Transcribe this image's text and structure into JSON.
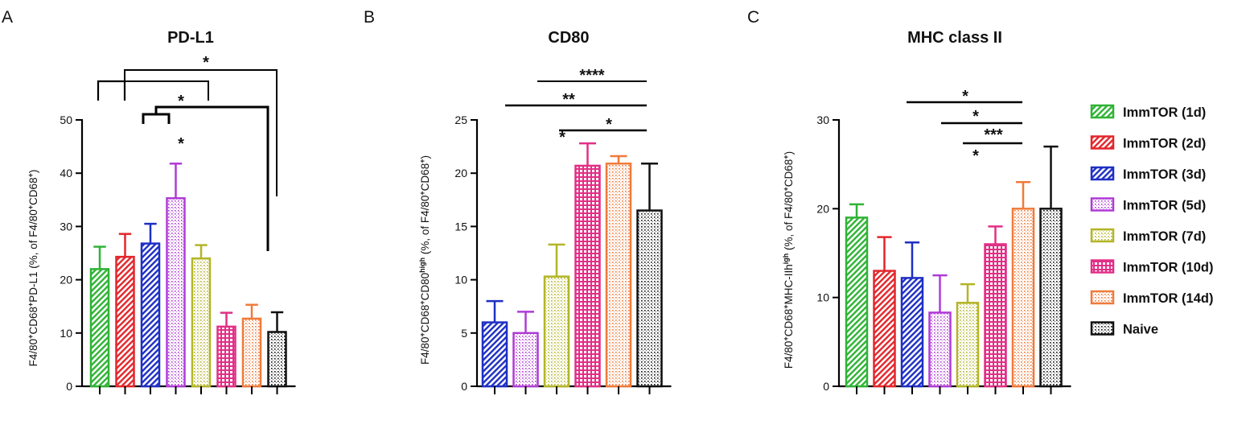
{
  "colors": {
    "ImmTOR (1d)": "#2fb335",
    "ImmTOR (2d)": "#e3262b",
    "ImmTOR (3d)": "#1e2fc4",
    "ImmTOR (5d)": "#b03ad6",
    "ImmTOR (7d)": "#b3b527",
    "ImmTOR (10d)": "#e22f86",
    "ImmTOR (14d)": "#f07a3a",
    "Naive": "#111111"
  },
  "legend": [
    "ImmTOR (1d)",
    "ImmTOR (2d)",
    "ImmTOR (3d)",
    "ImmTOR (5d)",
    "ImmTOR (7d)",
    "ImmTOR (10d)",
    "ImmTOR (14d)",
    "Naive"
  ],
  "chart_data": [
    {
      "type": "bar",
      "panel": "A",
      "title": "PD-L1",
      "ylabel_parts": [
        "F4/80",
        "+",
        "CD68",
        "+",
        "PD-L1 (%, of F4/80",
        "+",
        "CD68",
        "+",
        ")"
      ],
      "ylim": [
        0,
        50
      ],
      "yticks": [
        0,
        10,
        20,
        30,
        40,
        50
      ],
      "categories": [
        "ImmTOR (1d)",
        "ImmTOR (2d)",
        "ImmTOR (3d)",
        "ImmTOR (5d)",
        "ImmTOR (7d)",
        "ImmTOR (10d)",
        "ImmTOR (14d)",
        "Naive"
      ],
      "values": [
        22,
        24.3,
        26.8,
        35.3,
        24,
        11.2,
        12.7,
        10.2
      ],
      "errors": [
        4.2,
        4.3,
        3.7,
        6.5,
        2.5,
        2.6,
        2.6,
        3.7
      ],
      "annotations": [
        "*",
        "*",
        "*"
      ]
    },
    {
      "type": "bar",
      "panel": "B",
      "title": "CD80",
      "ylabel_parts": [
        "F4/80",
        "+",
        "CD68",
        "+",
        "CD80",
        "high",
        " (%, of F4/80",
        "+",
        "CD68",
        "+",
        ")"
      ],
      "ylim": [
        0,
        25
      ],
      "yticks": [
        0,
        5,
        10,
        15,
        20,
        25
      ],
      "categories": [
        "ImmTOR (3d)",
        "ImmTOR (5d)",
        "ImmTOR (7d)",
        "ImmTOR (10d)",
        "ImmTOR (14d)",
        "Naive"
      ],
      "values": [
        6,
        5,
        10.3,
        20.7,
        20.9,
        16.5
      ],
      "errors": [
        2,
        2,
        3,
        2.1,
        0.7,
        4.4
      ],
      "annotations": [
        "****",
        "**",
        "*",
        "*"
      ]
    },
    {
      "type": "bar",
      "panel": "C",
      "title": "MHC class II",
      "ylabel_parts": [
        "F4/80",
        "+",
        "CD68",
        "+",
        "MHC-IIh",
        "igh",
        " (%, of F4/80",
        "+",
        "CD68",
        "+",
        ")"
      ],
      "ylim": [
        0,
        30
      ],
      "yticks": [
        0,
        10,
        20,
        30
      ],
      "categories": [
        "ImmTOR (1d)",
        "ImmTOR (2d)",
        "ImmTOR (3d)",
        "ImmTOR (5d)",
        "ImmTOR (7d)",
        "ImmTOR (10d)",
        "ImmTOR (14d)",
        "Naive"
      ],
      "values": [
        19,
        13,
        12.2,
        8.3,
        9.4,
        16,
        20,
        20
      ],
      "errors": [
        1.5,
        3.8,
        4,
        4.2,
        2.1,
        2,
        3,
        7
      ],
      "annotations": [
        "*",
        "*",
        "***",
        "*"
      ]
    }
  ]
}
